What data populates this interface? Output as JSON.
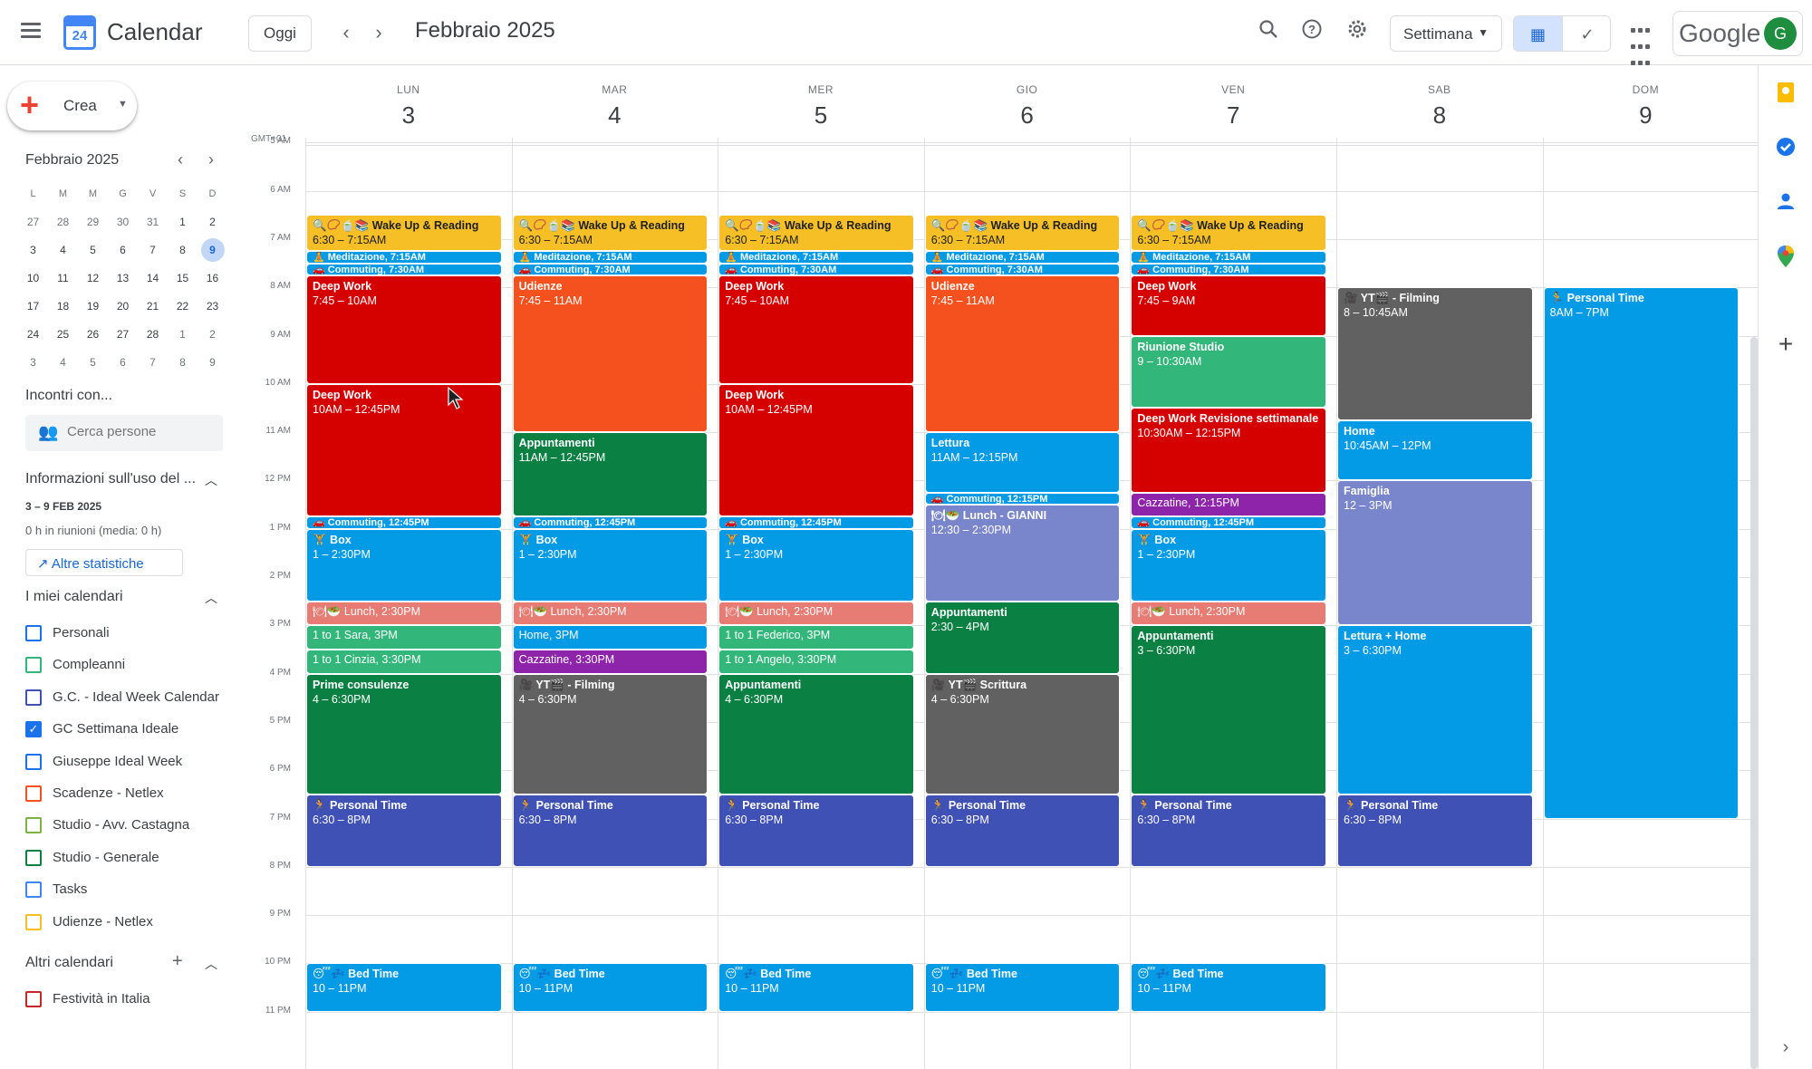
{
  "header": {
    "app_title": "Calendar",
    "logo_day": "24",
    "today_label": "Oggi",
    "prev_icon": "chevron-left-icon",
    "next_icon": "chevron-right-icon",
    "period": "Febbraio 2025",
    "view_label": "Settimana",
    "brand": "Google",
    "avatar": "G"
  },
  "sidebar": {
    "create_label": "Crea",
    "mini_title": "Febbraio 2025",
    "weekdays": [
      "L",
      "M",
      "M",
      "G",
      "V",
      "S",
      "D"
    ],
    "weeks": [
      [
        [
          "27",
          1
        ],
        [
          "28",
          1
        ],
        [
          "29",
          1
        ],
        [
          "30",
          1
        ],
        [
          "31",
          1
        ],
        [
          "1",
          0
        ],
        [
          "2",
          0
        ]
      ],
      [
        [
          "3",
          0
        ],
        [
          "4",
          0
        ],
        [
          "5",
          0
        ],
        [
          "6",
          0
        ],
        [
          "7",
          0
        ],
        [
          "8",
          0
        ],
        [
          "9",
          2
        ]
      ],
      [
        [
          "10",
          0
        ],
        [
          "11",
          0
        ],
        [
          "12",
          0
        ],
        [
          "13",
          0
        ],
        [
          "14",
          0
        ],
        [
          "15",
          0
        ],
        [
          "16",
          0
        ]
      ],
      [
        [
          "17",
          0
        ],
        [
          "18",
          0
        ],
        [
          "19",
          0
        ],
        [
          "20",
          0
        ],
        [
          "21",
          0
        ],
        [
          "22",
          0
        ],
        [
          "23",
          0
        ]
      ],
      [
        [
          "24",
          0
        ],
        [
          "25",
          0
        ],
        [
          "26",
          0
        ],
        [
          "27",
          0
        ],
        [
          "28",
          0
        ],
        [
          "1",
          1
        ],
        [
          "2",
          1
        ]
      ],
      [
        [
          "3",
          1
        ],
        [
          "4",
          1
        ],
        [
          "5",
          1
        ],
        [
          "6",
          1
        ],
        [
          "7",
          1
        ],
        [
          "8",
          1
        ],
        [
          "9",
          1
        ]
      ]
    ],
    "meet_title": "Incontri con...",
    "search_placeholder": "Cerca persone",
    "usage_title": "Informazioni sull'uso del ...",
    "usage_range": "3 – 9 FEB 2025",
    "usage_text": "0 h in riunioni (media: 0 h)",
    "more_stats": "Altre statistiche",
    "my_calendars_title": "I miei calendari",
    "my_calendars": [
      {
        "name": "Personali",
        "color": "#1a73e8",
        "checked": false
      },
      {
        "name": "Compleanni",
        "color": "#33b679",
        "checked": false
      },
      {
        "name": "G.C. - Ideal Week Calendar",
        "color": "#3f51b5",
        "checked": false
      },
      {
        "name": "GC Settimana Ideale",
        "color": "#1a73e8",
        "checked": true
      },
      {
        "name": "Giuseppe Ideal Week",
        "color": "#1a73e8",
        "checked": false
      },
      {
        "name": "Scadenze - Netlex",
        "color": "#f4511e",
        "checked": false
      },
      {
        "name": "Studio - Avv. Castagna",
        "color": "#7cb342",
        "checked": false
      },
      {
        "name": "Studio - Generale",
        "color": "#0b8043",
        "checked": false
      },
      {
        "name": "Tasks",
        "color": "#4285f4",
        "checked": false
      },
      {
        "name": "Udienze - Netlex",
        "color": "#f6bf26",
        "checked": false
      }
    ],
    "other_calendars_title": "Altri calendari",
    "other_calendars": [
      {
        "name": "Festività in Italia",
        "color": "#c62828",
        "checked": false
      }
    ]
  },
  "calendar": {
    "timezone": "GMT+01",
    "start_hour": 4.9,
    "days": [
      {
        "name": "LUN",
        "date": "3"
      },
      {
        "name": "MAR",
        "date": "4"
      },
      {
        "name": "MER",
        "date": "5"
      },
      {
        "name": "GIO",
        "date": "6"
      },
      {
        "name": "VEN",
        "date": "7"
      },
      {
        "name": "SAB",
        "date": "8"
      },
      {
        "name": "DOM",
        "date": "9"
      }
    ],
    "hours": [
      {
        "label": "5 AM",
        "h": 5
      },
      {
        "label": "6 AM",
        "h": 6
      },
      {
        "label": "7 AM",
        "h": 7
      },
      {
        "label": "8 AM",
        "h": 8
      },
      {
        "label": "9 AM",
        "h": 9
      },
      {
        "label": "10 AM",
        "h": 10
      },
      {
        "label": "11 AM",
        "h": 11
      },
      {
        "label": "12 PM",
        "h": 12
      },
      {
        "label": "1 PM",
        "h": 13
      },
      {
        "label": "2 PM",
        "h": 14
      },
      {
        "label": "3 PM",
        "h": 15
      },
      {
        "label": "4 PM",
        "h": 16
      },
      {
        "label": "5 PM",
        "h": 17
      },
      {
        "label": "6 PM",
        "h": 18
      },
      {
        "label": "7 PM",
        "h": 19
      },
      {
        "label": "8 PM",
        "h": 20
      },
      {
        "label": "9 PM",
        "h": 21
      },
      {
        "label": "10 PM",
        "h": 22
      },
      {
        "label": "11 PM",
        "h": 23
      }
    ],
    "events": [
      {
        "day": 0,
        "s": 6.5,
        "e": 7.25,
        "title": "🔍📿🍵📚 Wake Up & Reading",
        "time": "6:30 – 7:15AM",
        "color": "#f6bf26"
      },
      {
        "day": 0,
        "s": 7.25,
        "e": 7.5,
        "title": "🧘 Meditazione, 7:15AM",
        "time": "",
        "color": "#039be5",
        "thin": true
      },
      {
        "day": 0,
        "s": 7.5,
        "e": 7.75,
        "title": "🚗 Commuting, 7:30AM",
        "time": "",
        "color": "#039be5",
        "thin": true
      },
      {
        "day": 0,
        "s": 7.75,
        "e": 10,
        "title": "Deep Work",
        "time": "7:45 – 10AM",
        "color": "#d50000"
      },
      {
        "day": 0,
        "s": 10,
        "e": 12.75,
        "title": "Deep Work",
        "time": "10AM – 12:45PM",
        "color": "#d50000"
      },
      {
        "day": 0,
        "s": 12.75,
        "e": 13,
        "title": "🚗 Commuting, 12:45PM",
        "time": "",
        "color": "#039be5",
        "thin": true
      },
      {
        "day": 0,
        "s": 13,
        "e": 14.5,
        "title": "🏋 Box",
        "time": "1 – 2:30PM",
        "color": "#039be5"
      },
      {
        "day": 0,
        "s": 14.5,
        "e": 15,
        "title": "🍽🥗 Lunch, 2:30PM",
        "time": "",
        "color": "#e67c73",
        "one": true
      },
      {
        "day": 0,
        "s": 15,
        "e": 15.5,
        "title": "1 to 1 Sara, 3PM",
        "time": "",
        "color": "#33b679",
        "one": true
      },
      {
        "day": 0,
        "s": 15.5,
        "e": 16,
        "title": "1 to 1 Cinzia, 3:30PM",
        "time": "",
        "color": "#33b679",
        "one": true
      },
      {
        "day": 0,
        "s": 16,
        "e": 18.5,
        "title": "Prime consulenze",
        "time": "4 – 6:30PM",
        "color": "#0b8043"
      },
      {
        "day": 0,
        "s": 18.5,
        "e": 20,
        "title": "🏃 Personal Time",
        "time": "6:30 – 8PM",
        "color": "#3f51b5"
      },
      {
        "day": 0,
        "s": 22,
        "e": 23,
        "title": "😴💤 Bed Time",
        "time": "10 – 11PM",
        "color": "#039be5"
      },
      {
        "day": 1,
        "s": 6.5,
        "e": 7.25,
        "title": "🔍📿🍵📚 Wake Up & Reading",
        "time": "6:30 – 7:15AM",
        "color": "#f6bf26"
      },
      {
        "day": 1,
        "s": 7.25,
        "e": 7.5,
        "title": "🧘 Meditazione, 7:15AM",
        "time": "",
        "color": "#039be5",
        "thin": true
      },
      {
        "day": 1,
        "s": 7.5,
        "e": 7.75,
        "title": "🚗 Commuting, 7:30AM",
        "time": "",
        "color": "#039be5",
        "thin": true
      },
      {
        "day": 1,
        "s": 7.75,
        "e": 11,
        "title": "Udienze",
        "time": "7:45 – 11AM",
        "color": "#f4511e"
      },
      {
        "day": 1,
        "s": 11,
        "e": 12.75,
        "title": "Appuntamenti",
        "time": "11AM – 12:45PM",
        "color": "#0b8043"
      },
      {
        "day": 1,
        "s": 12.75,
        "e": 13,
        "title": "🚗 Commuting, 12:45PM",
        "time": "",
        "color": "#039be5",
        "thin": true
      },
      {
        "day": 1,
        "s": 13,
        "e": 14.5,
        "title": "🏋 Box",
        "time": "1 – 2:30PM",
        "color": "#039be5"
      },
      {
        "day": 1,
        "s": 14.5,
        "e": 15,
        "title": "🍽🥗 Lunch, 2:30PM",
        "time": "",
        "color": "#e67c73",
        "one": true
      },
      {
        "day": 1,
        "s": 15,
        "e": 15.5,
        "title": "Home, 3PM",
        "time": "",
        "color": "#039be5",
        "one": true
      },
      {
        "day": 1,
        "s": 15.5,
        "e": 16,
        "title": "Cazzatine, 3:30PM",
        "time": "",
        "color": "#8e24aa",
        "one": true
      },
      {
        "day": 1,
        "s": 16,
        "e": 18.5,
        "title": "🎥 YT🎬 - Filming",
        "time": "4 – 6:30PM",
        "color": "#616161"
      },
      {
        "day": 1,
        "s": 18.5,
        "e": 20,
        "title": "🏃 Personal Time",
        "time": "6:30 – 8PM",
        "color": "#3f51b5"
      },
      {
        "day": 1,
        "s": 22,
        "e": 23,
        "title": "😴💤 Bed Time",
        "time": "10 – 11PM",
        "color": "#039be5"
      },
      {
        "day": 2,
        "s": 6.5,
        "e": 7.25,
        "title": "🔍📿🍵📚 Wake Up & Reading",
        "time": "6:30 – 7:15AM",
        "color": "#f6bf26"
      },
      {
        "day": 2,
        "s": 7.25,
        "e": 7.5,
        "title": "🧘 Meditazione, 7:15AM",
        "time": "",
        "color": "#039be5",
        "thin": true
      },
      {
        "day": 2,
        "s": 7.5,
        "e": 7.75,
        "title": "🚗 Commuting, 7:30AM",
        "time": "",
        "color": "#039be5",
        "thin": true
      },
      {
        "day": 2,
        "s": 7.75,
        "e": 10,
        "title": "Deep Work",
        "time": "7:45 – 10AM",
        "color": "#d50000"
      },
      {
        "day": 2,
        "s": 10,
        "e": 12.75,
        "title": "Deep Work",
        "time": "10AM – 12:45PM",
        "color": "#d50000"
      },
      {
        "day": 2,
        "s": 12.75,
        "e": 13,
        "title": "🚗 Commuting, 12:45PM",
        "time": "",
        "color": "#039be5",
        "thin": true
      },
      {
        "day": 2,
        "s": 13,
        "e": 14.5,
        "title": "🏋 Box",
        "time": "1 – 2:30PM",
        "color": "#039be5"
      },
      {
        "day": 2,
        "s": 14.5,
        "e": 15,
        "title": "🍽🥗 Lunch, 2:30PM",
        "time": "",
        "color": "#e67c73",
        "one": true
      },
      {
        "day": 2,
        "s": 15,
        "e": 15.5,
        "title": "1 to 1 Federico, 3PM",
        "time": "",
        "color": "#33b679",
        "one": true
      },
      {
        "day": 2,
        "s": 15.5,
        "e": 16,
        "title": "1 to 1 Angelo, 3:30PM",
        "time": "",
        "color": "#33b679",
        "one": true
      },
      {
        "day": 2,
        "s": 16,
        "e": 18.5,
        "title": "Appuntamenti",
        "time": "4 – 6:30PM",
        "color": "#0b8043"
      },
      {
        "day": 2,
        "s": 18.5,
        "e": 20,
        "title": "🏃 Personal Time",
        "time": "6:30 – 8PM",
        "color": "#3f51b5"
      },
      {
        "day": 2,
        "s": 22,
        "e": 23,
        "title": "😴💤 Bed Time",
        "time": "10 – 11PM",
        "color": "#039be5"
      },
      {
        "day": 3,
        "s": 6.5,
        "e": 7.25,
        "title": "🔍📿🍵📚 Wake Up & Reading",
        "time": "6:30 – 7:15AM",
        "color": "#f6bf26"
      },
      {
        "day": 3,
        "s": 7.25,
        "e": 7.5,
        "title": "🧘 Meditazione, 7:15AM",
        "time": "",
        "color": "#039be5",
        "thin": true
      },
      {
        "day": 3,
        "s": 7.5,
        "e": 7.75,
        "title": "🚗 Commuting, 7:30AM",
        "time": "",
        "color": "#039be5",
        "thin": true
      },
      {
        "day": 3,
        "s": 7.75,
        "e": 11,
        "title": "Udienze",
        "time": "7:45 – 11AM",
        "color": "#f4511e"
      },
      {
        "day": 3,
        "s": 11,
        "e": 12.25,
        "title": "Lettura",
        "time": "11AM – 12:15PM",
        "color": "#039be5"
      },
      {
        "day": 3,
        "s": 12.25,
        "e": 12.5,
        "title": "🚗 Commuting, 12:15PM",
        "time": "",
        "color": "#039be5",
        "thin": true
      },
      {
        "day": 3,
        "s": 12.5,
        "e": 14.5,
        "title": "🍽🥗 Lunch - GIANNI",
        "time": "12:30 – 2:30PM",
        "color": "#7986cb"
      },
      {
        "day": 3,
        "s": 14.5,
        "e": 16,
        "title": "Appuntamenti",
        "time": "2:30 – 4PM",
        "color": "#0b8043"
      },
      {
        "day": 3,
        "s": 16,
        "e": 18.5,
        "title": "🎥 YT🎬 Scrittura",
        "time": "4 – 6:30PM",
        "color": "#616161"
      },
      {
        "day": 3,
        "s": 18.5,
        "e": 20,
        "title": "🏃 Personal Time",
        "time": "6:30 – 8PM",
        "color": "#3f51b5"
      },
      {
        "day": 3,
        "s": 22,
        "e": 23,
        "title": "😴💤 Bed Time",
        "time": "10 – 11PM",
        "color": "#039be5"
      },
      {
        "day": 4,
        "s": 6.5,
        "e": 7.25,
        "title": "🔍📿🍵📚 Wake Up & Reading",
        "time": "6:30 – 7:15AM",
        "color": "#f6bf26"
      },
      {
        "day": 4,
        "s": 7.25,
        "e": 7.5,
        "title": "🧘 Meditazione, 7:15AM",
        "time": "",
        "color": "#039be5",
        "thin": true
      },
      {
        "day": 4,
        "s": 7.5,
        "e": 7.75,
        "title": "🚗 Commuting, 7:30AM",
        "time": "",
        "color": "#039be5",
        "thin": true
      },
      {
        "day": 4,
        "s": 7.75,
        "e": 9,
        "title": "Deep Work",
        "time": "7:45 – 9AM",
        "color": "#d50000"
      },
      {
        "day": 4,
        "s": 9,
        "e": 10.5,
        "title": "Riunione Studio",
        "time": "9 – 10:30AM",
        "color": "#33b679"
      },
      {
        "day": 4,
        "s": 10.5,
        "e": 12.25,
        "title": "Deep Work Revisione settimanale",
        "time": "10:30AM – 12:15PM",
        "color": "#d50000"
      },
      {
        "day": 4,
        "s": 12.25,
        "e": 12.75,
        "title": "Cazzatine, 12:15PM",
        "time": "",
        "color": "#8e24aa",
        "one": true
      },
      {
        "day": 4,
        "s": 12.75,
        "e": 13,
        "title": "🚗 Commuting, 12:45PM",
        "time": "",
        "color": "#039be5",
        "thin": true
      },
      {
        "day": 4,
        "s": 13,
        "e": 14.5,
        "title": "🏋 Box",
        "time": "1 – 2:30PM",
        "color": "#039be5"
      },
      {
        "day": 4,
        "s": 14.5,
        "e": 15,
        "title": "🍽🥗 Lunch, 2:30PM",
        "time": "",
        "color": "#e67c73",
        "one": true
      },
      {
        "day": 4,
        "s": 15,
        "e": 18.5,
        "title": "Appuntamenti",
        "time": "3 – 6:30PM",
        "color": "#0b8043"
      },
      {
        "day": 4,
        "s": 18.5,
        "e": 20,
        "title": "🏃 Personal Time",
        "time": "6:30 – 8PM",
        "color": "#3f51b5"
      },
      {
        "day": 4,
        "s": 22,
        "e": 23,
        "title": "😴💤 Bed Time",
        "time": "10 – 11PM",
        "color": "#039be5"
      },
      {
        "day": 5,
        "s": 8,
        "e": 10.75,
        "title": "🎥 YT🎬 - Filming",
        "time": "8 – 10:45AM",
        "color": "#616161"
      },
      {
        "day": 5,
        "s": 10.75,
        "e": 12,
        "title": "Home",
        "time": "10:45AM – 12PM",
        "color": "#039be5"
      },
      {
        "day": 5,
        "s": 12,
        "e": 15,
        "title": "Famiglia",
        "time": "12 – 3PM",
        "color": "#7986cb"
      },
      {
        "day": 5,
        "s": 15,
        "e": 18.5,
        "title": "Lettura + Home",
        "time": "3 – 6:30PM",
        "color": "#039be5"
      },
      {
        "day": 5,
        "s": 18.5,
        "e": 20,
        "title": "🏃 Personal Time",
        "time": "6:30 – 8PM",
        "color": "#3f51b5"
      },
      {
        "day": 6,
        "s": 8,
        "e": 19,
        "title": "🏃 Personal Time",
        "time": "8AM – 7PM",
        "color": "#039be5"
      }
    ]
  },
  "right_strip": {
    "icons": [
      "keep-icon",
      "tasks-icon",
      "contacts-icon",
      "maps-icon",
      "add-addon-icon"
    ]
  }
}
